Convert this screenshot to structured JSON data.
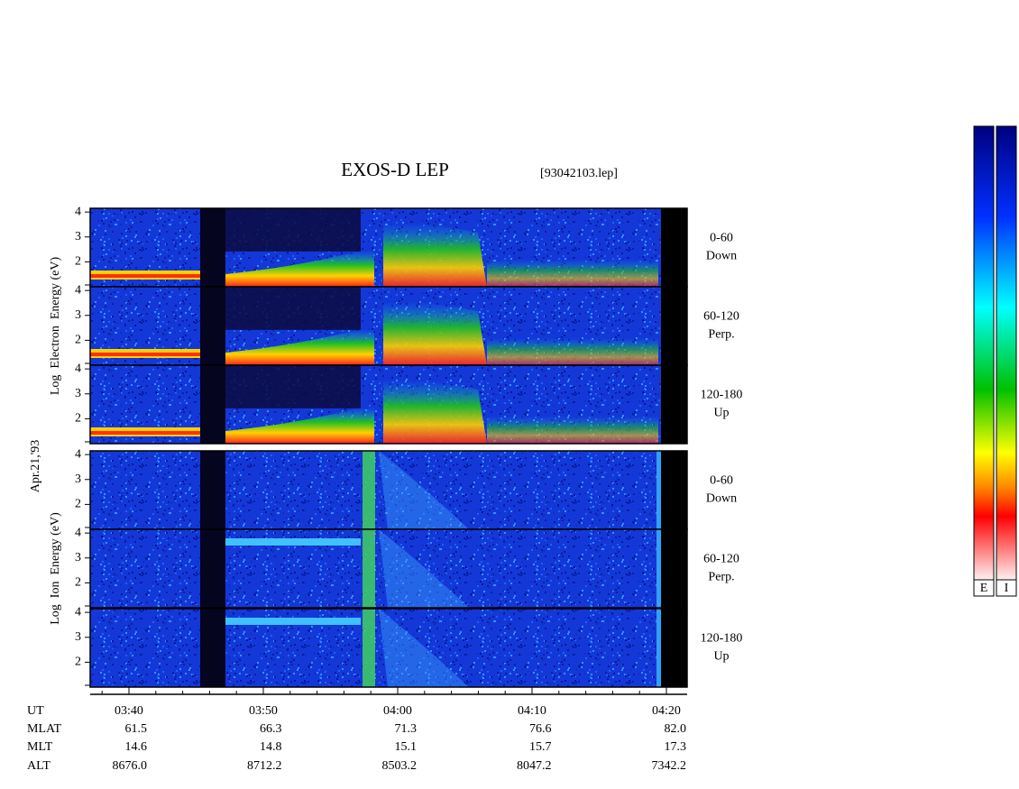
{
  "title": "EXOS-D LEP",
  "file_id": "[93042103.lep]",
  "date": "Apr.21,'93",
  "ylim": [
    1,
    4.15
  ],
  "yticks": [
    2,
    3,
    4
  ],
  "panels": [
    {
      "label": "Log  Electron  Energy (eV)",
      "channels": [
        {
          "range": "0-60",
          "direction": "Down"
        },
        {
          "range": "60-120",
          "direction": "Perp."
        },
        {
          "range": "120-180",
          "direction": "Up"
        }
      ]
    },
    {
      "label": "Log  Ion  Energy (eV)",
      "channels": [
        {
          "range": "0-60",
          "direction": "Down"
        },
        {
          "range": "60-120",
          "direction": "Perp."
        },
        {
          "range": "120-180",
          "direction": "Up"
        }
      ]
    }
  ],
  "ut_ticks": [
    "03:40",
    "03:50",
    "04:00",
    "04:10",
    "04:20"
  ],
  "orbit": {
    "row_names": [
      "UT",
      "MLAT",
      "MLT",
      "ALT"
    ],
    "rows": [
      [
        "61.5",
        "66.3",
        "71.3",
        "76.6",
        "82.0"
      ],
      [
        "14.6",
        "14.8",
        "15.1",
        "15.7",
        "17.3"
      ],
      [
        "8676.0",
        "8712.2",
        "8503.2",
        "8047.2",
        "7342.2"
      ]
    ]
  },
  "colorbar_labels": [
    "E",
    "I"
  ]
}
